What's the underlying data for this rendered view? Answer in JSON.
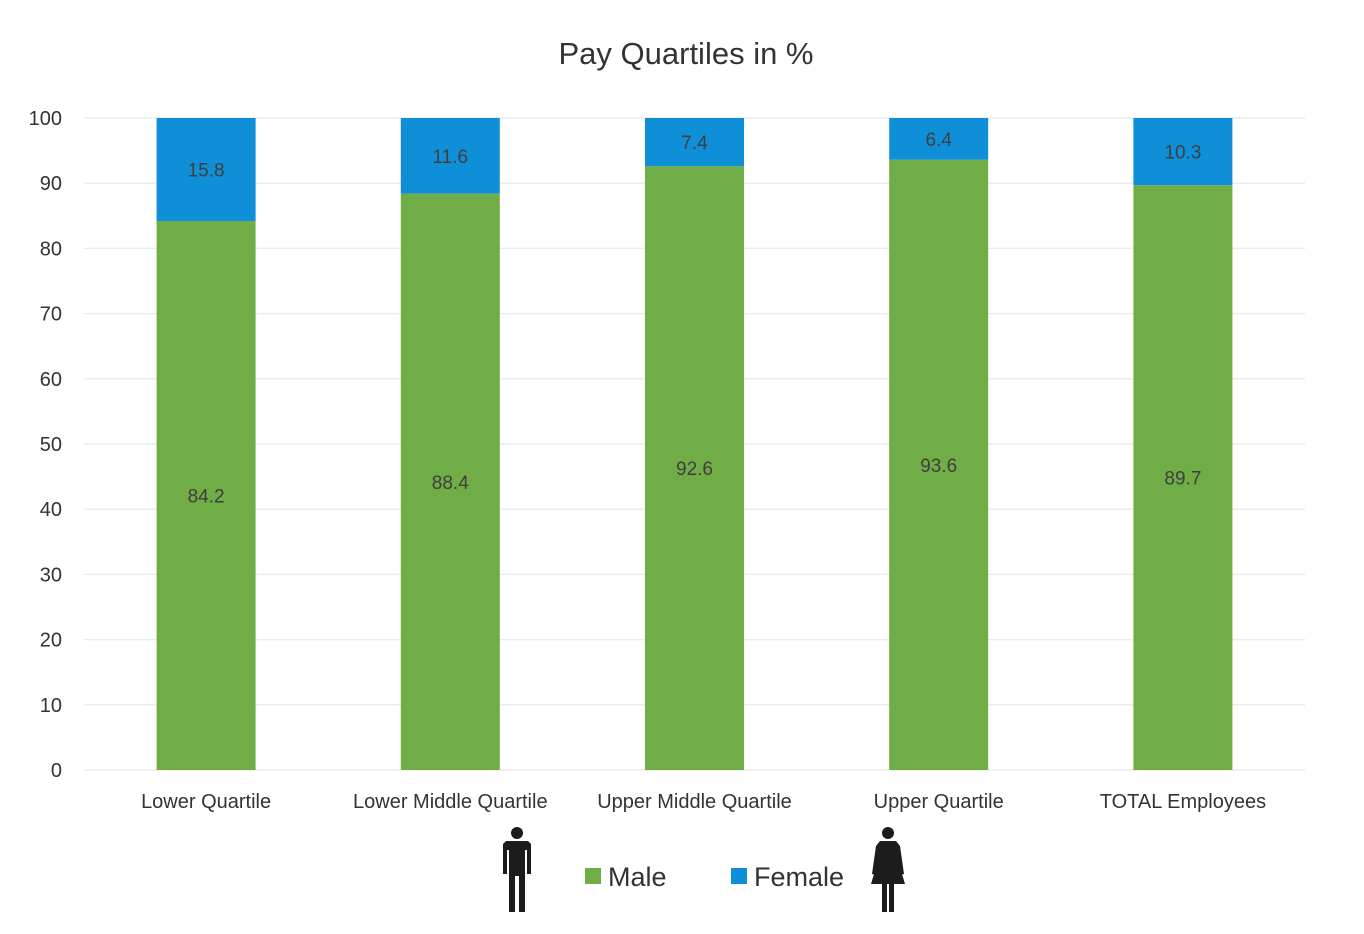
{
  "chart_data": {
    "type": "bar",
    "stacked": true,
    "title": "Pay Quartiles in %",
    "categories": [
      "Lower Quartile",
      "Lower Middle Quartile",
      "Upper Middle Quartile",
      "Upper Quartile",
      "TOTAL Employees"
    ],
    "series": [
      {
        "name": "Male",
        "values": [
          84.2,
          88.4,
          92.6,
          93.6,
          89.7
        ],
        "color": "#70ad47"
      },
      {
        "name": "Female",
        "values": [
          15.8,
          11.6,
          7.4,
          6.4,
          10.3
        ],
        "color": "#0f8fd8"
      }
    ],
    "y_ticks": [
      "0",
      "10",
      "20",
      "30",
      "40",
      "50",
      "60",
      "70",
      "80",
      "90",
      "100"
    ],
    "ylim": [
      0,
      100
    ],
    "grid": true,
    "legend": {
      "position": "bottom",
      "icons": [
        "male-figure-icon",
        "female-figure-icon"
      ]
    }
  }
}
